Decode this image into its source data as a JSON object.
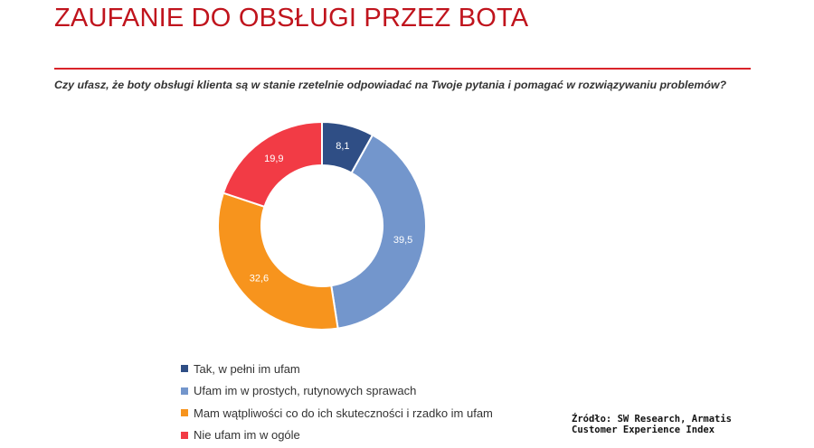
{
  "header": {
    "title": "ZAUFANIE DO OBSŁUGI PRZEZ BOTA",
    "question": "Czy ufasz, że boty obsługi klienta są w stanie rzetelnie odpowiadać na Twoje pytania i pomagać w rozwiązywaniu problemów?"
  },
  "chart_data": {
    "type": "pie",
    "donut": true,
    "title": "",
    "categories": [
      "Tak, w pełni im ufam",
      "Ufam im w prostych, rutynowych sprawach",
      "Mam wątpliwości co do ich skuteczności i rzadko im ufam",
      "Nie ufam im w ogóle"
    ],
    "values": [
      8.1,
      39.5,
      32.6,
      19.9
    ],
    "value_labels": [
      "8,1",
      "39,5",
      "32,6",
      "19,9"
    ],
    "colors": [
      "#2f4e85",
      "#7396cc",
      "#f7941d",
      "#f23b45"
    ],
    "legend_position": "bottom-left"
  },
  "source": {
    "line1": "Źródło: SW Research, Armatis",
    "line2": "Customer Experience Index"
  }
}
